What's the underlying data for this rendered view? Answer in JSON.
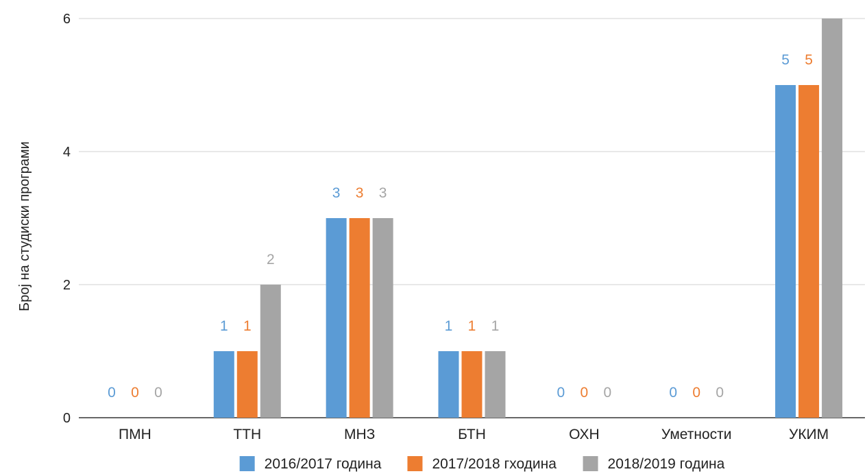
{
  "chart_data": {
    "type": "bar",
    "title": "",
    "xlabel": "",
    "ylabel": "Број на студиски програми",
    "ylim": [
      0,
      6
    ],
    "yticks": [
      0,
      2,
      4,
      6
    ],
    "grid": true,
    "legend_position": "bottom",
    "categories": [
      "ПМН",
      "ТТН",
      "МНЗ",
      "БТН",
      "ОХН",
      "Уметности",
      "УКИМ"
    ],
    "series": [
      {
        "name": "2016/2017 година",
        "color": "#5b9bd5",
        "values": [
          0,
          1,
          3,
          1,
          0,
          0,
          5
        ],
        "labels": [
          "0",
          "1",
          "3",
          "1",
          "0",
          "0",
          "5"
        ]
      },
      {
        "name": "2017/2018 гходина",
        "color": "#ed7d31",
        "values": [
          0,
          1,
          3,
          1,
          0,
          0,
          5
        ],
        "labels": [
          "0",
          "1",
          "3",
          "1",
          "0",
          "0",
          "5"
        ]
      },
      {
        "name": "2018/2019 година",
        "color": "#a5a5a5",
        "values": [
          0,
          2,
          3,
          1,
          0,
          0,
          6
        ],
        "labels": [
          "0",
          "2",
          "3",
          "1",
          "0",
          "0",
          ""
        ]
      }
    ]
  }
}
